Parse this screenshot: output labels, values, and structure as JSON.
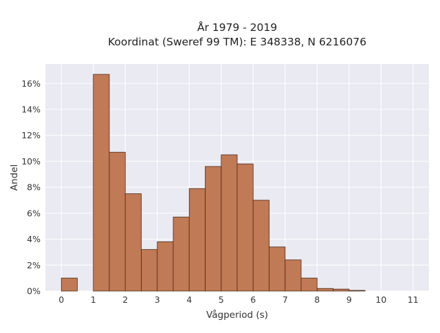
{
  "chart_data": {
    "type": "bar",
    "title": "År 1979 - 2019",
    "subtitle": "Koordinat (Sweref 99 TM): E 348338, N 6216076",
    "xlabel": "Vågperiod (s)",
    "ylabel": "Andel",
    "xlim": [
      -0.5,
      11.5
    ],
    "ylim": [
      0,
      17.5
    ],
    "x_ticks": [
      0,
      1,
      2,
      3,
      4,
      5,
      6,
      7,
      8,
      9,
      10,
      11
    ],
    "y_ticks": [
      0,
      2,
      4,
      6,
      8,
      10,
      12,
      14,
      16
    ],
    "y_tick_labels": [
      "0%",
      "2%",
      "4%",
      "6%",
      "8%",
      "10%",
      "12%",
      "14%",
      "16%"
    ],
    "bin_width": 0.5,
    "bins": [
      {
        "start": 0.0,
        "value": 1.0
      },
      {
        "start": 1.0,
        "value": 16.7
      },
      {
        "start": 1.5,
        "value": 10.7
      },
      {
        "start": 2.0,
        "value": 7.5
      },
      {
        "start": 2.5,
        "value": 3.2
      },
      {
        "start": 3.0,
        "value": 3.8
      },
      {
        "start": 3.5,
        "value": 5.7
      },
      {
        "start": 4.0,
        "value": 7.9
      },
      {
        "start": 4.5,
        "value": 9.6
      },
      {
        "start": 5.0,
        "value": 10.5
      },
      {
        "start": 5.5,
        "value": 9.8
      },
      {
        "start": 6.0,
        "value": 7.0
      },
      {
        "start": 6.5,
        "value": 3.4
      },
      {
        "start": 7.0,
        "value": 2.4
      },
      {
        "start": 7.5,
        "value": 1.0
      },
      {
        "start": 8.0,
        "value": 0.2
      },
      {
        "start": 8.5,
        "value": 0.15
      },
      {
        "start": 9.0,
        "value": 0.05
      }
    ],
    "grid": true,
    "colors": {
      "bar_fill": "#c07a55",
      "bar_edge": "#4a2a18",
      "plot_background": "#eaeaf2",
      "grid": "#ffffff"
    }
  }
}
